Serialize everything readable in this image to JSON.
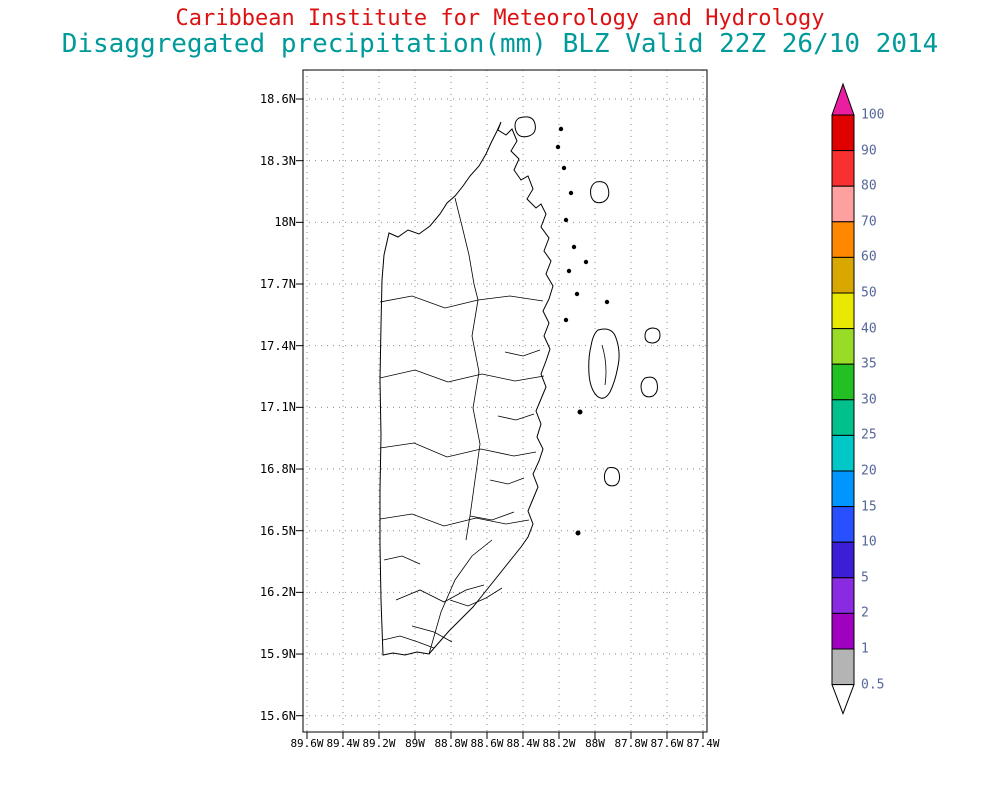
{
  "titles": {
    "line1": "Caribbean Institute for Meteorology and Hydrology",
    "line1_color": "#dd1111",
    "line2": "Disaggregated precipitation(mm) BLZ Valid 22Z 26/10 2014",
    "line2_color": "#009a9a"
  },
  "axes": {
    "lat_ticks": [
      "18.6N",
      "18.3N",
      "18N",
      "17.7N",
      "17.4N",
      "17.1N",
      "16.8N",
      "16.5N",
      "16.2N",
      "15.9N",
      "15.6N"
    ],
    "lon_ticks": [
      "89.6W",
      "89.4W",
      "89.2W",
      "89W",
      "88.8W",
      "88.6W",
      "88.4W",
      "88.2W",
      "88W",
      "87.8W",
      "87.6W",
      "87.4W"
    ]
  },
  "colorbar": {
    "labels": [
      "100",
      "90",
      "80",
      "70",
      "60",
      "50",
      "40",
      "35",
      "30",
      "25",
      "20",
      "15",
      "10",
      "5",
      "2",
      "1",
      "0.5"
    ],
    "segment_colors_top_to_bottom": [
      "#e00000",
      "#f83030",
      "#ffa0a0",
      "#ff8800",
      "#d8a800",
      "#e8e800",
      "#98dc28",
      "#22c022",
      "#00c08c",
      "#00c8c8",
      "#0096ff",
      "#2850ff",
      "#3b1ed6",
      "#8a2be2",
      "#a000c0",
      "#b4b4b4"
    ],
    "above_max_color": "#ea1fa0",
    "below_min_color": "#ffffff",
    "label_color": "#556699"
  },
  "chart_data": {
    "type": "heatmap",
    "title": "Disaggregated precipitation(mm) BLZ Valid 22Z 26/10 2014",
    "source": "Caribbean Institute for Meteorology and Hydrology",
    "region": "Belize (BLZ)",
    "units": "mm",
    "valid_time": "22Z 26/10 2014",
    "xlabel_ticks": [
      "89.6W",
      "89.4W",
      "89.2W",
      "89W",
      "88.8W",
      "88.6W",
      "88.4W",
      "88.2W",
      "88W",
      "87.8W",
      "87.6W",
      "87.4W"
    ],
    "ylabel_ticks": [
      "18.6N",
      "18.3N",
      "18N",
      "17.7N",
      "17.4N",
      "17.1N",
      "16.8N",
      "16.5N",
      "16.2N",
      "15.9N",
      "15.6N"
    ],
    "colorbar_levels": [
      0.5,
      1,
      2,
      5,
      10,
      15,
      20,
      25,
      30,
      35,
      40,
      50,
      60,
      70,
      80,
      90,
      100
    ],
    "values_shown": "no shaded precipitation visible; map area unshaded, only Belize coastline, borders and watershed boundaries drawn",
    "grid": true,
    "legend_position": "right"
  }
}
